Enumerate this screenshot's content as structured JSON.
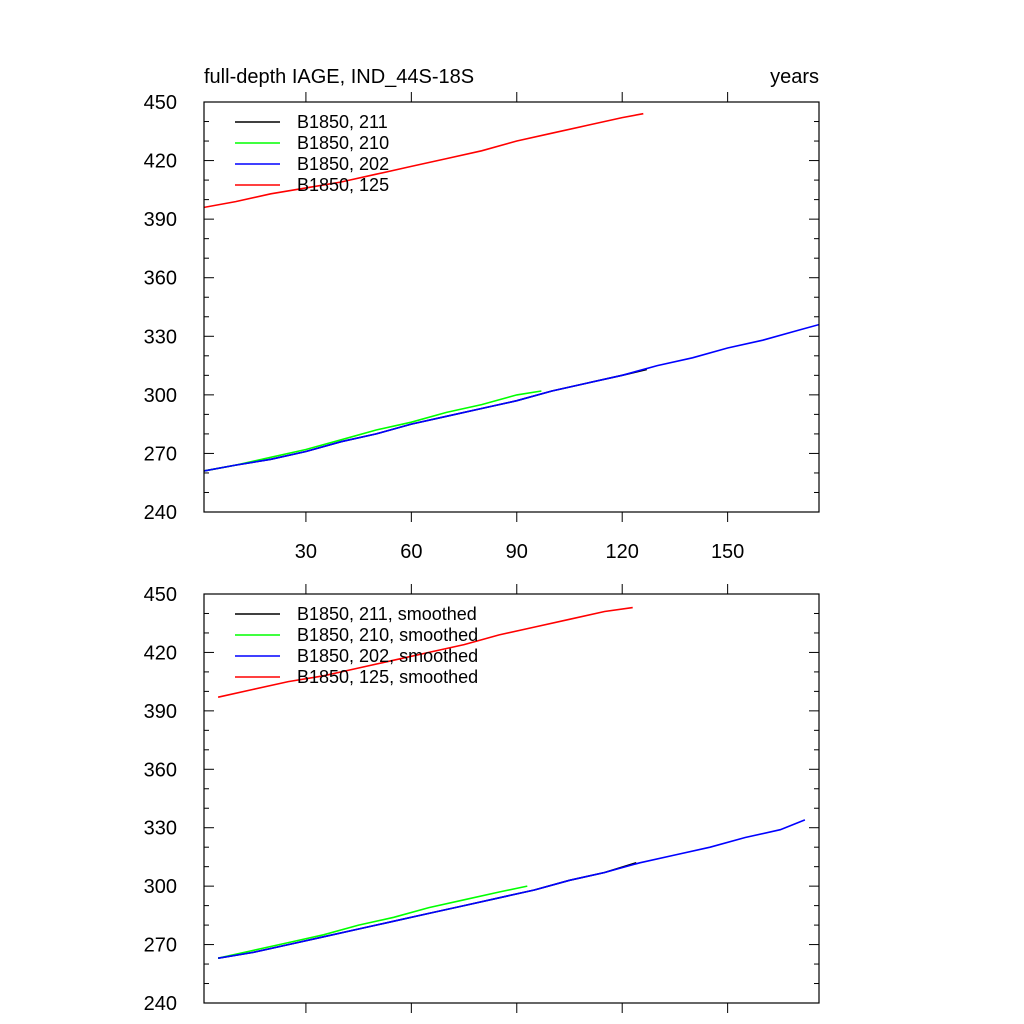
{
  "chart_data": [
    {
      "type": "line",
      "title": "full-depth IAGE, IND_44S-18S",
      "units": "years",
      "xlim": [
        1,
        176
      ],
      "ylim": [
        240,
        450
      ],
      "yticks": [
        240,
        270,
        300,
        330,
        360,
        390,
        420,
        450
      ],
      "xticks": [
        30,
        60,
        90,
        120,
        150
      ],
      "x_tick_labels_shown": true,
      "legend_position": "top-left",
      "series": [
        {
          "name": "B1850, 211",
          "color": "#000000",
          "x": [
            1,
            10,
            20,
            30,
            40,
            50,
            60,
            70,
            80,
            90,
            100,
            110,
            120,
            127
          ],
          "values": [
            261,
            264,
            267,
            271,
            276,
            280,
            285,
            289,
            293,
            297,
            302,
            306,
            310,
            313
          ]
        },
        {
          "name": "B1850, 210",
          "color": "#00ff00",
          "x": [
            1,
            10,
            20,
            30,
            40,
            50,
            60,
            70,
            80,
            90,
            97
          ],
          "values": [
            261,
            264,
            268,
            272,
            277,
            282,
            286,
            291,
            295,
            300,
            302
          ]
        },
        {
          "name": "B1850, 202",
          "color": "#0000ff",
          "x": [
            1,
            10,
            20,
            30,
            40,
            50,
            60,
            70,
            80,
            90,
            100,
            110,
            120,
            130,
            140,
            150,
            160,
            170,
            176
          ],
          "values": [
            261,
            264,
            267,
            271,
            276,
            280,
            285,
            289,
            293,
            297,
            302,
            306,
            310,
            315,
            319,
            324,
            328,
            333,
            336
          ]
        },
        {
          "name": "B1850, 125",
          "color": "#ff0000",
          "x": [
            1,
            10,
            20,
            30,
            40,
            50,
            60,
            70,
            80,
            90,
            100,
            110,
            120,
            126
          ],
          "values": [
            396,
            399,
            403,
            406,
            409,
            413,
            417,
            421,
            425,
            430,
            434,
            438,
            442,
            444
          ]
        }
      ]
    },
    {
      "type": "line",
      "title": "",
      "xlim": [
        1,
        176
      ],
      "ylim": [
        240,
        450
      ],
      "yticks": [
        240,
        270,
        300,
        330,
        360,
        390,
        420,
        450
      ],
      "xticks": [
        30,
        60,
        90,
        120,
        150
      ],
      "x_tick_labels_shown": false,
      "legend_position": "top-left",
      "series": [
        {
          "name": "B1850, 211, smoothed",
          "color": "#000000",
          "x": [
            5,
            15,
            25,
            35,
            45,
            55,
            65,
            75,
            85,
            95,
            105,
            115,
            124
          ],
          "values": [
            263,
            266,
            270,
            274,
            278,
            282,
            286,
            290,
            294,
            298,
            303,
            307,
            312
          ]
        },
        {
          "name": "B1850, 210, smoothed",
          "color": "#00ff00",
          "x": [
            5,
            15,
            25,
            35,
            45,
            55,
            65,
            75,
            85,
            93
          ],
          "values": [
            263,
            267,
            271,
            275,
            280,
            284,
            289,
            293,
            297,
            300
          ]
        },
        {
          "name": "B1850, 202, smoothed",
          "color": "#0000ff",
          "x": [
            5,
            15,
            25,
            35,
            45,
            55,
            65,
            75,
            85,
            95,
            105,
            115,
            125,
            135,
            145,
            155,
            165,
            172
          ],
          "values": [
            263,
            266,
            270,
            274,
            278,
            282,
            286,
            290,
            294,
            298,
            303,
            307,
            312,
            316,
            320,
            325,
            329,
            334
          ]
        },
        {
          "name": "B1850, 125, smoothed",
          "color": "#ff0000",
          "x": [
            5,
            15,
            25,
            35,
            45,
            55,
            65,
            75,
            85,
            95,
            105,
            115,
            123
          ],
          "values": [
            397,
            401,
            405,
            408,
            412,
            416,
            420,
            424,
            429,
            433,
            437,
            441,
            443
          ]
        }
      ]
    }
  ]
}
